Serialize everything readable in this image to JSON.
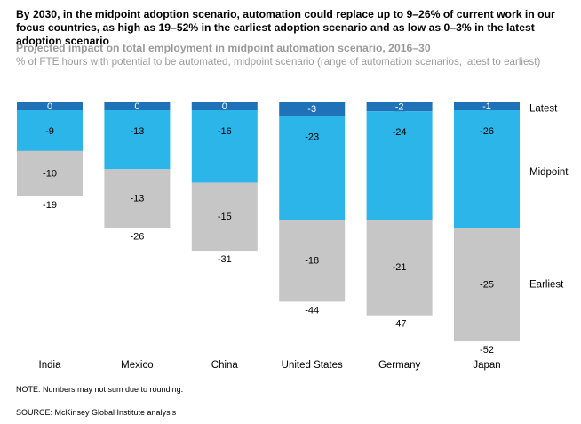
{
  "title": "By 2030, in the midpoint adoption scenario, automation could replace up to 9–26% of current work in our focus countries, as high as 19–52% in the earliest adoption scenario and as low as 0–3% in the latest adoption scenario",
  "subtitle": "Projected impact on total employment in midpoint automation scenario, 2016–30",
  "subsubtitle": "% of FTE hours with potential to be automated, midpoint scenario (range of automation scenarios, latest to earliest)",
  "note": "NOTE: Numbers may not sum due to rounding.",
  "source": "SOURCE: McKinsey Global Institute analysis",
  "colors": {
    "latest": "#1f72b8",
    "midpoint": "#2cb5e9",
    "earliest": "#c6c6c6"
  },
  "chart_data": {
    "type": "bar",
    "stacked": true,
    "orientation": "downward",
    "categories": [
      "India",
      "Mexico",
      "China",
      "United States",
      "Germany",
      "Japan"
    ],
    "series": [
      {
        "name": "Latest",
        "values": [
          0,
          0,
          0,
          -3,
          -2,
          -1
        ]
      },
      {
        "name": "Midpoint",
        "values": [
          -9,
          -13,
          -16,
          -23,
          -24,
          -26
        ]
      },
      {
        "name": "Earliest",
        "values": [
          -10,
          -13,
          -15,
          -18,
          -21,
          -25
        ]
      }
    ],
    "totals": [
      -19,
      -26,
      -31,
      -44,
      -47,
      -52
    ],
    "ylim": [
      -52,
      0
    ],
    "grid": false,
    "legend_placement": "right"
  }
}
